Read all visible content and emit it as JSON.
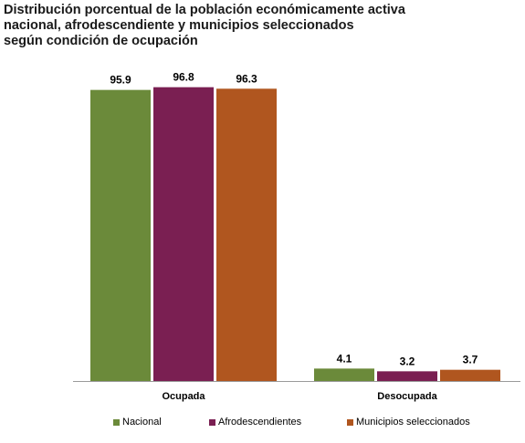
{
  "chart_data": {
    "type": "bar",
    "title_lines": [
      "Distribución porcentual de la población económicamente activa",
      "nacional, afrodescendiente y municipios seleccionados",
      "según condición de ocupación"
    ],
    "categories": [
      "Ocupada",
      "Desocupada"
    ],
    "series": [
      {
        "name": "Nacional",
        "values": [
          95.9,
          4.1
        ],
        "labels": [
          "95.9",
          "4.1"
        ],
        "color": "#6b8a3a"
      },
      {
        "name": "Afrodescendientes",
        "values": [
          96.8,
          3.2
        ],
        "labels": [
          "96.8",
          "3.2"
        ],
        "color": "#7a1f52"
      },
      {
        "name": "Municipios seleccionados",
        "values": [
          96.3,
          3.7
        ],
        "labels": [
          "96.3",
          "3.7"
        ],
        "color": "#b0561f"
      }
    ],
    "ylim": [
      0,
      100
    ],
    "grid": false,
    "legend_position": "bottom"
  }
}
